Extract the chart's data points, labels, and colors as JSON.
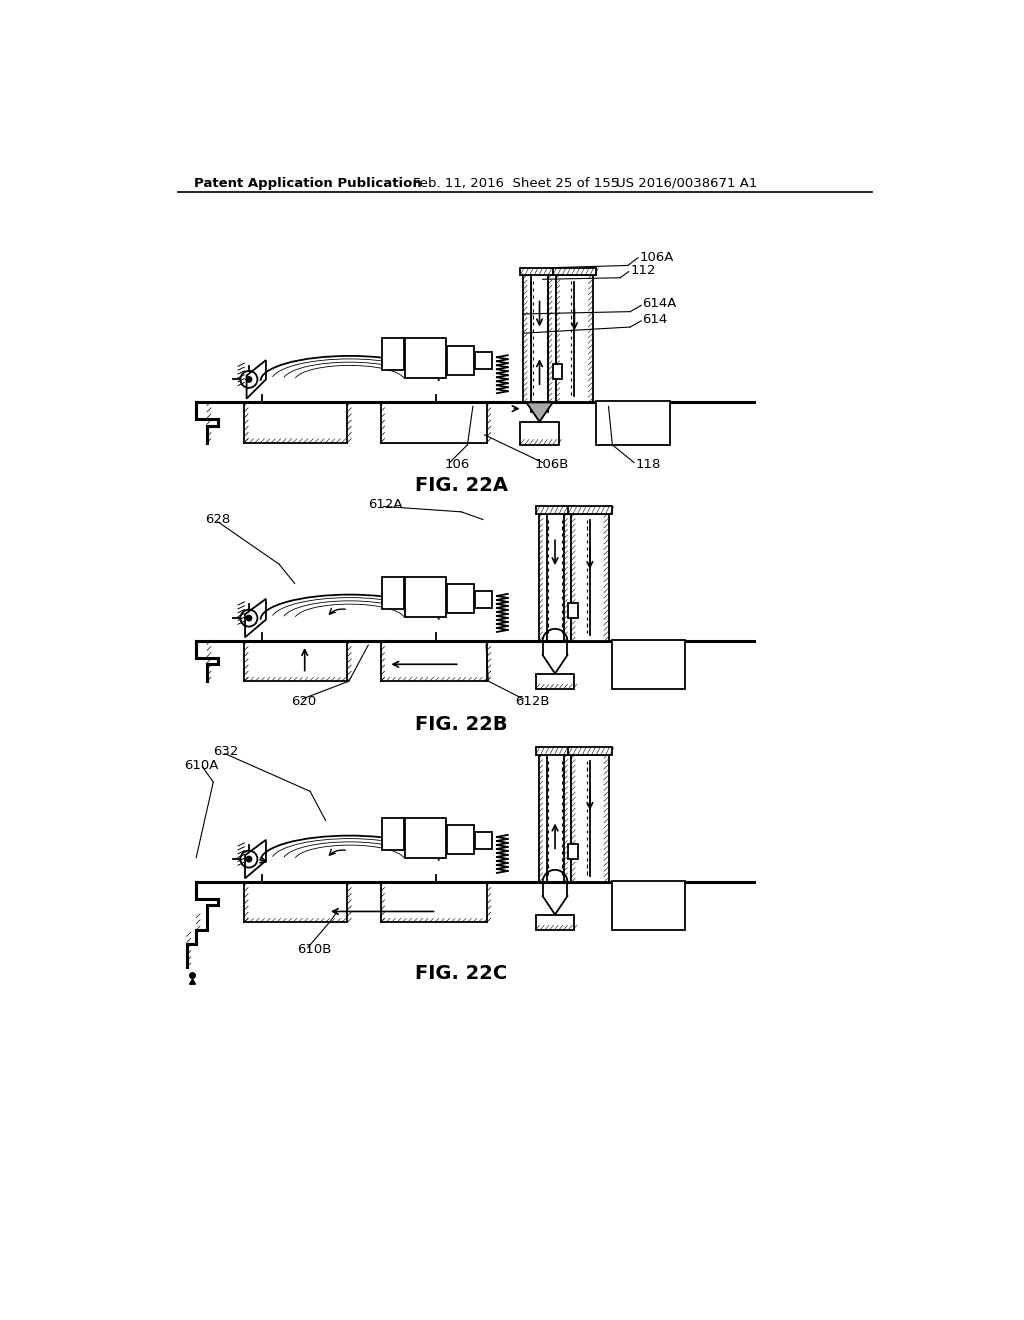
{
  "header_left": "Patent Application Publication",
  "header_middle": "Feb. 11, 2016  Sheet 25 of 155",
  "header_right": "US 2016/0038671 A1",
  "background_color": "#ffffff",
  "fig22A_label": "FIG. 22A",
  "fig22B_label": "FIG. 22B",
  "fig22C_label": "FIG. 22C"
}
